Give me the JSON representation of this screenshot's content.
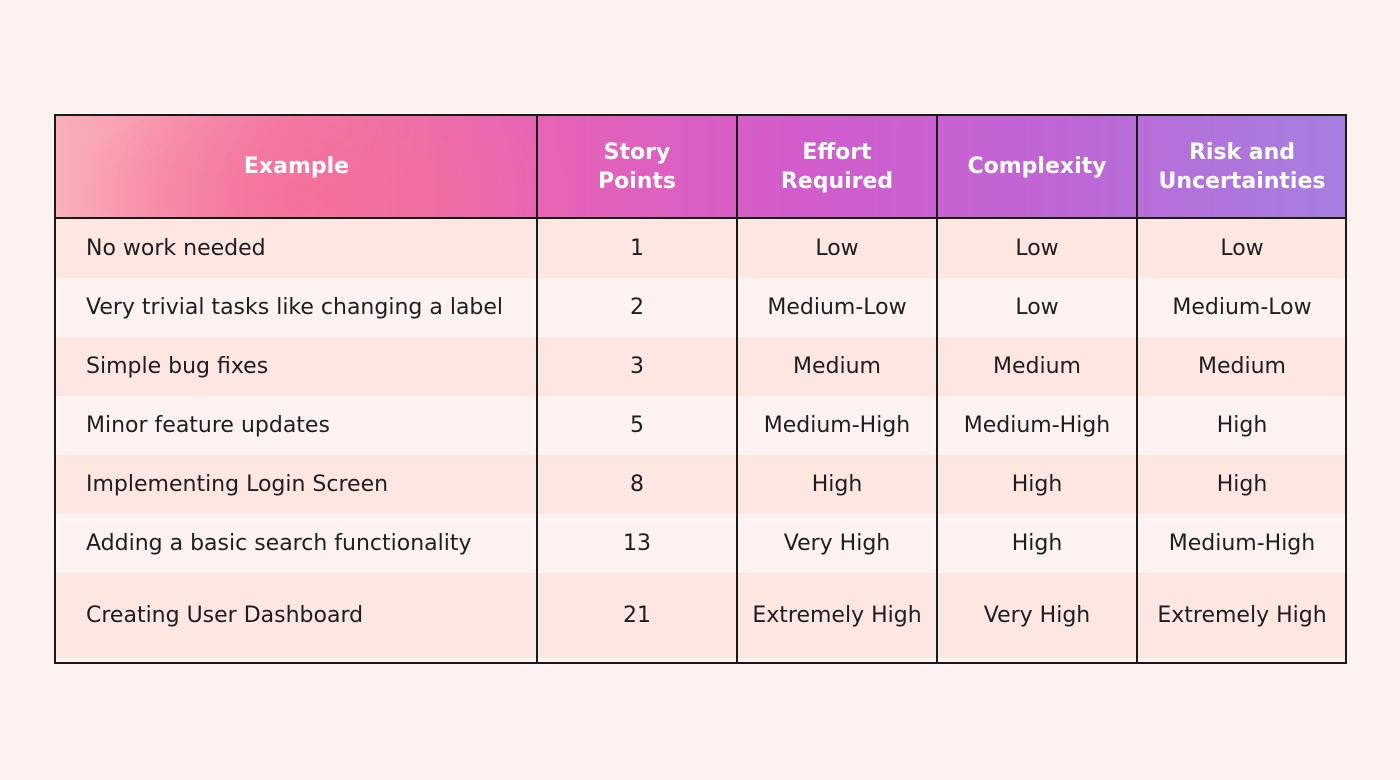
{
  "table": {
    "headers": {
      "example": "Example",
      "story_points": "Story Points",
      "effort": "Effort Required",
      "complexity": "Complexity",
      "risk": "Risk and Uncertainties"
    },
    "rows": [
      {
        "example": "No work needed",
        "story_points": "1",
        "effort": "Low",
        "complexity": "Low",
        "risk": "Low"
      },
      {
        "example": "Very trivial tasks like changing a label",
        "story_points": "2",
        "effort": "Medium-Low",
        "complexity": "Low",
        "risk": "Medium-Low"
      },
      {
        "example": "Simple bug fixes",
        "story_points": "3",
        "effort": "Medium",
        "complexity": "Medium",
        "risk": "Medium"
      },
      {
        "example": "Minor feature updates",
        "story_points": "5",
        "effort": "Medium-High",
        "complexity": "Medium-High",
        "risk": "High"
      },
      {
        "example": "Implementing Login Screen",
        "story_points": "8",
        "effort": "High",
        "complexity": "High",
        "risk": "High"
      },
      {
        "example": "Adding a basic search functionality",
        "story_points": "13",
        "effort": "Very High",
        "complexity": "High",
        "risk": "Medium-High"
      },
      {
        "example": "Creating User Dashboard",
        "story_points": "21",
        "effort": "Extremely High",
        "complexity": "Very High",
        "risk": "Extremely High"
      }
    ]
  },
  "colors": {
    "background": "#fff3f1",
    "row_odd": "#fee6e1",
    "row_even": "#fff3f1",
    "border": "#1a1a1a",
    "header_gradient_start": "#fbb0b8",
    "header_gradient_end": "#a57fe0"
  }
}
